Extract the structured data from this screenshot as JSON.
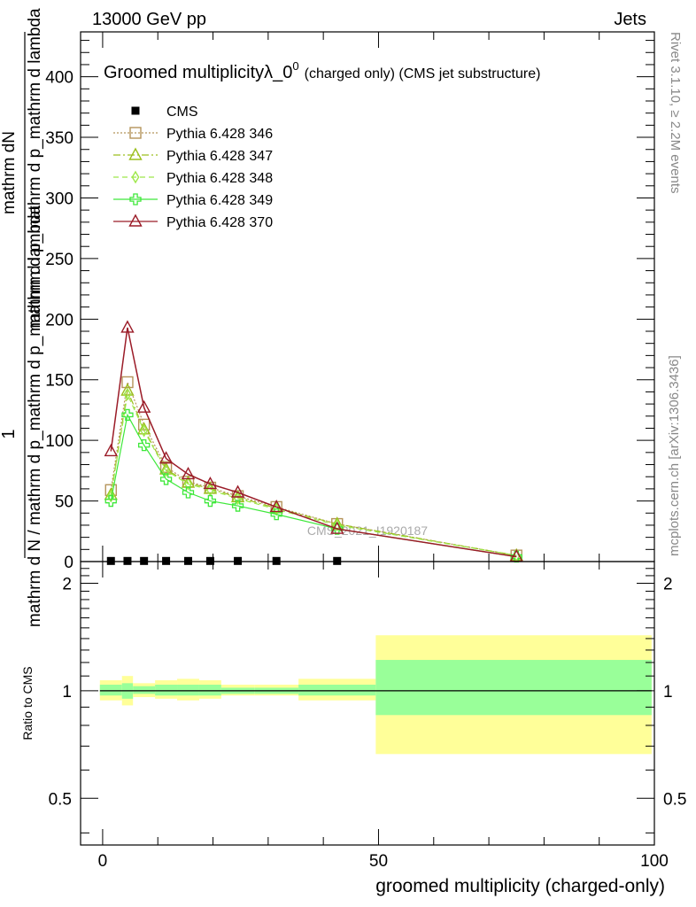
{
  "header": {
    "energy": "13000 GeV pp",
    "category": "Jets",
    "side_rivet": "Rivet 3.1.10, ≥ 2.2M events",
    "side_site": "mcplots.cern.ch [arXiv:1306.3436]",
    "watermark": "CMS_2021_I1920187"
  },
  "chart_data": [
    {
      "type": "line",
      "title_main": "Groomed multiplicityλ_0",
      "title_sup": "0",
      "title_small": "(charged only) (CMS jet substructure)",
      "ylabel_num": "1",
      "ylabel_num_small": "mathrm dN",
      "ylabel_den": "mathrm d N / mathrm d p_mathrm d p_mathrm d lambda",
      "ylabel_den_small": "mathrm d p_mathrm d p_mathrm d lambda",
      "xlim": [
        -4,
        100
      ],
      "ylim": [
        0,
        437
      ],
      "y_ticks": [
        0,
        50,
        100,
        150,
        200,
        250,
        300,
        350,
        400
      ],
      "series": [
        {
          "name": "CMS",
          "color": "#000000",
          "marker": "square-filled",
          "line": "none",
          "x": [
            1.5,
            4.5,
            7.5,
            11.5,
            15.5,
            19.5,
            24.5,
            31.5,
            42.5
          ],
          "y": [
            0.5,
            0.5,
            0.5,
            0.5,
            0.5,
            0.5,
            0.5,
            0.5,
            0.5
          ]
        },
        {
          "name": "Pythia 6.428 346",
          "color": "#b5945a",
          "marker": "square-open",
          "line": "dotted",
          "x": [
            1.5,
            4.5,
            7.5,
            11.5,
            15.5,
            19.5,
            24.5,
            31.5,
            42.5,
            75
          ],
          "y": [
            59,
            148,
            113,
            78,
            66,
            61,
            54,
            45,
            31,
            5
          ]
        },
        {
          "name": "Pythia 6.428 347",
          "color": "#9cbf1e",
          "marker": "triangle-open",
          "line": "dashdot",
          "x": [
            1.5,
            4.5,
            7.5,
            11.5,
            15.5,
            19.5,
            24.5,
            31.5,
            42.5,
            75
          ],
          "y": [
            55,
            141,
            109,
            76,
            65,
            60,
            53,
            44,
            31,
            5
          ]
        },
        {
          "name": "Pythia 6.428 348",
          "color": "#9ee84a",
          "marker": "diamond-open",
          "line": "dashed",
          "x": [
            1.5,
            4.5,
            7.5,
            11.5,
            15.5,
            19.5,
            24.5,
            31.5,
            42.5,
            75
          ],
          "y": [
            54,
            138,
            108,
            75,
            64,
            59,
            52,
            43,
            30,
            5
          ]
        },
        {
          "name": "Pythia 6.428 349",
          "color": "#3ee83a",
          "marker": "cross-open",
          "line": "solid",
          "x": [
            1.5,
            4.5,
            7.5,
            11.5,
            15.5,
            19.5,
            24.5,
            31.5,
            42.5,
            75
          ],
          "y": [
            50,
            121,
            96,
            68,
            57,
            50,
            46,
            39,
            27,
            4
          ]
        },
        {
          "name": "Pythia 6.428 370",
          "color": "#9b1c28",
          "marker": "triangle-open",
          "line": "solid",
          "x": [
            1.5,
            4.5,
            7.5,
            11.5,
            15.5,
            19.5,
            24.5,
            31.5,
            42.5,
            75
          ],
          "y": [
            91,
            193,
            127,
            85,
            72,
            64,
            57,
            45,
            27,
            4
          ]
        }
      ]
    },
    {
      "type": "area",
      "ylabel": "Ratio to CMS",
      "xlabel": "groomed multiplicity (charged-only)",
      "xlim": [
        -4,
        100
      ],
      "ylim": [
        0.37,
        2.3
      ],
      "y_ticks": [
        0.5,
        1,
        2
      ],
      "x_ticks": [
        0,
        50,
        100
      ],
      "reference": 1,
      "band_colors": {
        "stat": "#99ff99",
        "total": "#ffff99"
      },
      "bins": [
        {
          "lo": -0.5,
          "hi": 3.5,
          "stat": [
            0.97,
            1.04
          ],
          "total": [
            0.94,
            1.07
          ]
        },
        {
          "lo": 3.5,
          "hi": 5.5,
          "stat": [
            0.95,
            1.05
          ],
          "total": [
            0.91,
            1.1
          ]
        },
        {
          "lo": 5.5,
          "hi": 9.5,
          "stat": [
            0.98,
            1.03
          ],
          "total": [
            0.96,
            1.05
          ]
        },
        {
          "lo": 9.5,
          "hi": 13.5,
          "stat": [
            0.97,
            1.04
          ],
          "total": [
            0.95,
            1.07
          ]
        },
        {
          "lo": 13.5,
          "hi": 17.5,
          "stat": [
            0.97,
            1.04
          ],
          "total": [
            0.94,
            1.08
          ]
        },
        {
          "lo": 17.5,
          "hi": 21.5,
          "stat": [
            0.97,
            1.04
          ],
          "total": [
            0.95,
            1.07
          ]
        },
        {
          "lo": 21.5,
          "hi": 27.5,
          "stat": [
            0.98,
            1.02
          ],
          "total": [
            0.97,
            1.04
          ]
        },
        {
          "lo": 27.5,
          "hi": 35.5,
          "stat": [
            0.98,
            1.02
          ],
          "total": [
            0.97,
            1.04
          ]
        },
        {
          "lo": 35.5,
          "hi": 49.5,
          "stat": [
            0.97,
            1.04
          ],
          "total": [
            0.94,
            1.08
          ]
        },
        {
          "lo": 49.5,
          "hi": 99.5,
          "stat": [
            0.855,
            1.22
          ],
          "total": [
            0.665,
            1.43
          ]
        }
      ]
    }
  ]
}
